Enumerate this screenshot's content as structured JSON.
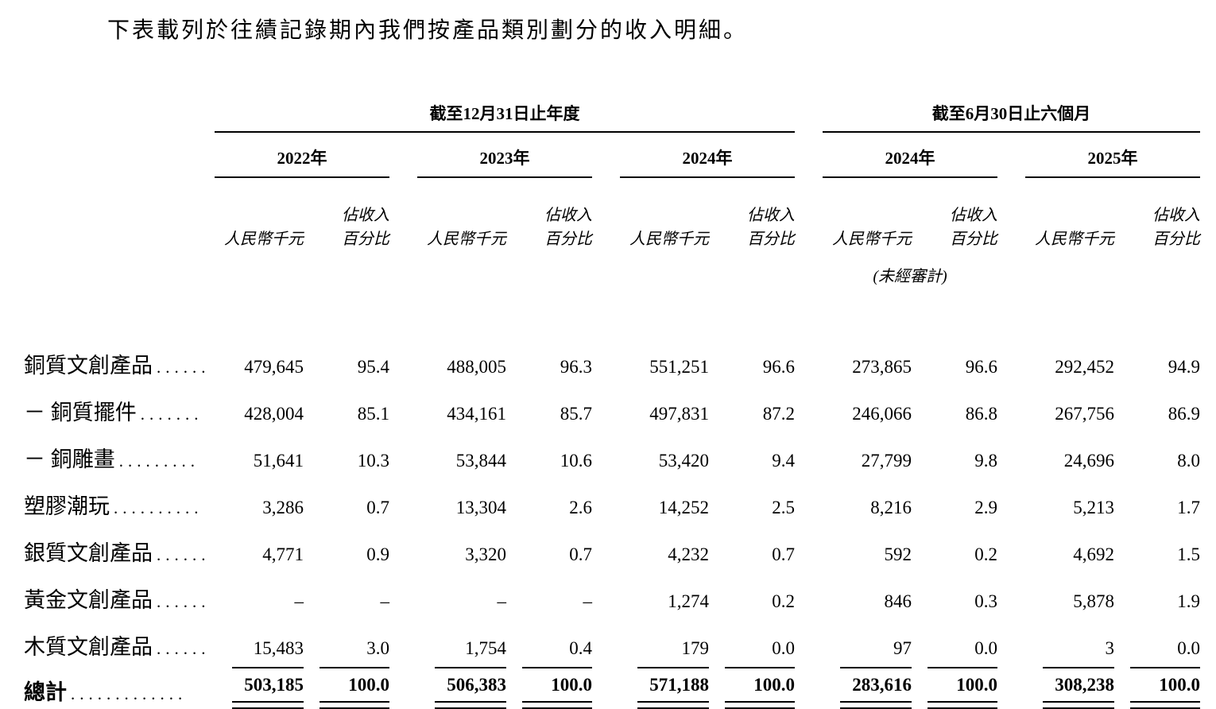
{
  "title": "下表載列於往績記錄期內我們按產品類別劃分的收入明細。",
  "table": {
    "period_groups": [
      {
        "label": "截至12月31日止年度",
        "years": [
          "2022年",
          "2023年",
          "2024年"
        ]
      },
      {
        "label": "截至6月30日止六個月",
        "years": [
          "2024年",
          "2025年"
        ]
      }
    ],
    "col_headers": {
      "amount": "人民幣千元",
      "pct_line1": "佔收入",
      "pct_line2": "百分比",
      "unaudited": "(未經審計)"
    },
    "rows": [
      {
        "label": "銅質文創產品",
        "leader": "......",
        "values": [
          "479,645",
          "95.4",
          "488,005",
          "96.3",
          "551,251",
          "96.6",
          "273,865",
          "96.6",
          "292,452",
          "94.9"
        ]
      },
      {
        "label": "－ 銅質擺件",
        "leader": ".......",
        "values": [
          "428,004",
          "85.1",
          "434,161",
          "85.7",
          "497,831",
          "87.2",
          "246,066",
          "86.8",
          "267,756",
          "86.9"
        ]
      },
      {
        "label": "－ 銅雕畫",
        "leader": ".........",
        "values": [
          "51,641",
          "10.3",
          "53,844",
          "10.6",
          "53,420",
          "9.4",
          "27,799",
          "9.8",
          "24,696",
          "8.0"
        ]
      },
      {
        "label": "塑膠潮玩",
        "leader": "..........",
        "values": [
          "3,286",
          "0.7",
          "13,304",
          "2.6",
          "14,252",
          "2.5",
          "8,216",
          "2.9",
          "5,213",
          "1.7"
        ]
      },
      {
        "label": "銀質文創產品",
        "leader": "......",
        "values": [
          "4,771",
          "0.9",
          "3,320",
          "0.7",
          "4,232",
          "0.7",
          "592",
          "0.2",
          "4,692",
          "1.5"
        ]
      },
      {
        "label": "黃金文創產品",
        "leader": "......",
        "values": [
          "–",
          "–",
          "–",
          "–",
          "1,274",
          "0.2",
          "846",
          "0.3",
          "5,878",
          "1.9"
        ]
      },
      {
        "label": "木質文創產品",
        "leader": "......",
        "values": [
          "15,483",
          "3.0",
          "1,754",
          "0.4",
          "179",
          "0.0",
          "97",
          "0.0",
          "3",
          "0.0"
        ]
      }
    ],
    "total": {
      "label": "總計",
      "leader": ".............",
      "values": [
        "503,185",
        "100.0",
        "506,383",
        "100.0",
        "571,188",
        "100.0",
        "283,616",
        "100.0",
        "308,238",
        "100.0"
      ]
    }
  }
}
